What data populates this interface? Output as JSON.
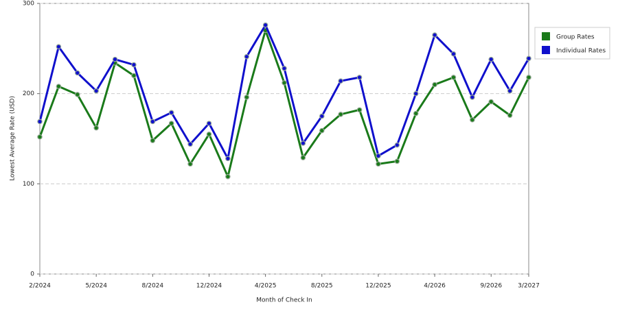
{
  "chart_data": {
    "type": "line",
    "x_label": "Month of Check In",
    "y_label": "Lowest Average Rate (USD)",
    "categories": [
      "2/2024",
      null,
      null,
      "5/2024",
      null,
      null,
      "8/2024",
      null,
      null,
      "12/2024",
      null,
      null,
      "4/2025",
      null,
      null,
      "8/2025",
      null,
      null,
      "12/2025",
      null,
      null,
      "4/2026",
      null,
      null,
      "9/2026",
      null,
      "3/2027"
    ],
    "series": [
      {
        "name": "Group Rates",
        "color": "#1a7a1a",
        "values": [
          152,
          208,
          199,
          162,
          234,
          220,
          148,
          167,
          122,
          155,
          108,
          196,
          270,
          212,
          129,
          159,
          177,
          182,
          122,
          125,
          178,
          210,
          218,
          171,
          191,
          176,
          218
        ]
      },
      {
        "name": "Individual Rates",
        "color": "#1010cc",
        "values": [
          169,
          252,
          223,
          203,
          238,
          232,
          169,
          179,
          144,
          167,
          128,
          241,
          276,
          228,
          145,
          175,
          214,
          218,
          131,
          143,
          200,
          265,
          244,
          196,
          238,
          203,
          239
        ]
      }
    ],
    "ylim": [
      0,
      300
    ],
    "yticks": [
      0,
      100,
      200,
      300
    ],
    "grid": true,
    "legend": "right"
  }
}
